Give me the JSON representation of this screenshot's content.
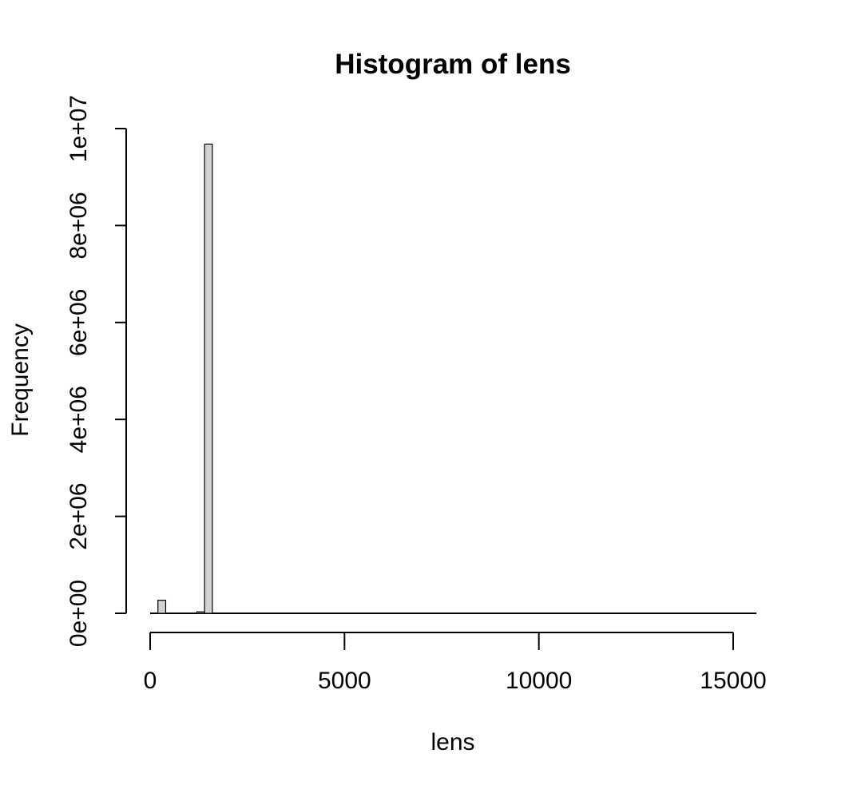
{
  "chart_data": {
    "type": "bar",
    "title": "Histogram of lens",
    "xlabel": "lens",
    "ylabel": "Frequency",
    "bin_width": 200,
    "x_range": [
      0,
      15600
    ],
    "xlim": [
      0,
      15000
    ],
    "ylim": [
      0,
      10000000
    ],
    "x_ticks": [
      0,
      5000,
      10000,
      15000
    ],
    "x_tick_labels": [
      "0",
      "5000",
      "10000",
      "15000"
    ],
    "y_ticks": [
      0,
      2000000,
      4000000,
      6000000,
      8000000,
      10000000
    ],
    "y_tick_labels": [
      "0e+00",
      "2e+06",
      "4e+06",
      "6e+06",
      "8e+06",
      "1e+07"
    ],
    "bins": [
      {
        "start": 200,
        "end": 400,
        "count": 270000
      },
      {
        "start": 1200,
        "end": 1400,
        "count": 30000
      },
      {
        "start": 1400,
        "end": 1600,
        "count": 9680000
      }
    ],
    "bar_fill": "#d3d3d3",
    "bar_stroke": "#000000",
    "grid": false
  }
}
